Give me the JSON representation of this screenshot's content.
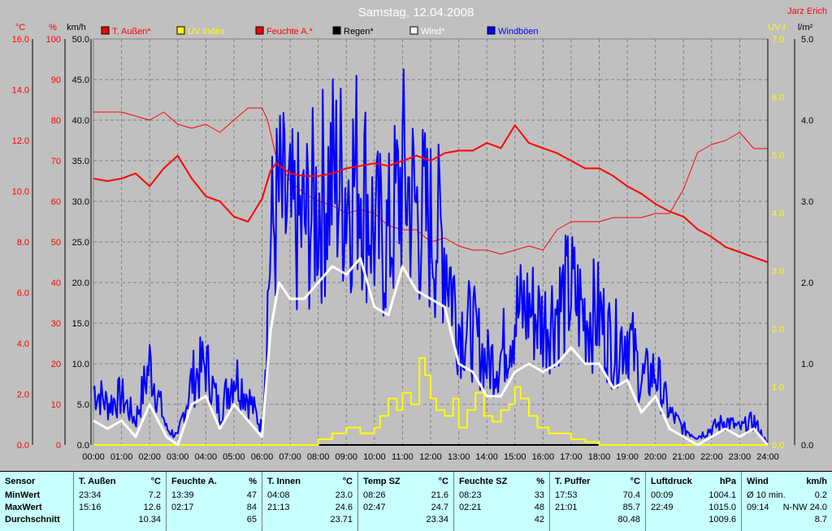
{
  "header": {
    "title": "Samstag, 12.04.2008",
    "author": "Jarz Erich"
  },
  "axes": {
    "temp_unit": "°C",
    "hum_unit": "%",
    "wind_unit": "km/h",
    "uv_unit": "UV-I",
    "rain_unit": "l/m²",
    "temp_ticks": [
      "0.0",
      "2.0",
      "4.0",
      "6.0",
      "8.0",
      "10.0",
      "12.0",
      "14.0",
      "16.0"
    ],
    "hum_ticks": [
      "0",
      "10",
      "20",
      "30",
      "40",
      "50",
      "60",
      "70",
      "80",
      "90",
      "100"
    ],
    "wind_ticks": [
      "0.0",
      "5.0",
      "10.0",
      "15.0",
      "20.0",
      "25.0",
      "30.0",
      "35.0",
      "40.0",
      "45.0",
      "50.0"
    ],
    "uv_ticks": [
      "0.0",
      "1.0",
      "2.0",
      "3.0",
      "4.0",
      "5.0",
      "6.0",
      "7.0"
    ],
    "rain_ticks": [
      "0.0",
      "1.0",
      "2.0",
      "3.0",
      "4.0",
      "5.0"
    ],
    "x_ticks": [
      "00:00",
      "01:00",
      "02:00",
      "03:00",
      "04:00",
      "05:00",
      "06:00",
      "07:00",
      "08:00",
      "09:00",
      "10:00",
      "11:00",
      "12:00",
      "13:00",
      "14:00",
      "15:00",
      "16:00",
      "17:00",
      "18:00",
      "19:00",
      "20:00",
      "21:00",
      "22:00",
      "23:00",
      "24:00"
    ]
  },
  "colors": {
    "temp": "#ff0000",
    "hum": "#ff0000",
    "uv": "#ffff00",
    "rain": "#000000",
    "wind": "#ffffff",
    "gust": "#0000ff",
    "grid": "#808080",
    "axis_text_left": "#ff0000",
    "axis_text_uv": "#ffff00"
  },
  "legend": [
    {
      "name": "T. Außen*",
      "color": "#ff0000"
    },
    {
      "name": "UV Index",
      "color": "#ffff00"
    },
    {
      "name": "Feuchte A.*",
      "color": "#ff0000"
    },
    {
      "name": "Regen*",
      "color": "#000000"
    },
    {
      "name": "Wind*",
      "color": "#ffffff"
    },
    {
      "name": "Windböen",
      "color": "#0000ff"
    }
  ],
  "chart_data": {
    "type": "line",
    "title": "Samstag, 12.04.2008",
    "x_unit": "hour",
    "xlim": [
      0,
      24
    ],
    "series": [
      {
        "name": "T. Außen*",
        "axis": "temp",
        "ylim": [
          0,
          16
        ],
        "width": 2,
        "x": [
          0,
          0.5,
          1,
          1.5,
          2,
          2.5,
          3,
          3.5,
          4,
          4.5,
          5,
          5.5,
          6,
          6.3,
          6.5,
          7,
          7.5,
          8,
          8.5,
          9,
          9.5,
          10,
          10.5,
          11,
          11.5,
          12,
          12.5,
          13,
          13.5,
          14,
          14.5,
          15,
          15.5,
          16,
          16.5,
          17,
          17.5,
          18,
          18.5,
          19,
          19.5,
          20,
          20.5,
          21,
          21.5,
          22,
          22.5,
          23,
          23.5,
          24
        ],
        "y": [
          10.5,
          10.4,
          10.5,
          10.7,
          10.2,
          10.9,
          11.4,
          10.5,
          9.8,
          9.6,
          9.0,
          8.8,
          9.7,
          10.8,
          11.1,
          10.7,
          10.6,
          10.6,
          10.7,
          10.9,
          11.0,
          11.1,
          11.0,
          11.2,
          11.4,
          11.2,
          11.5,
          11.6,
          11.6,
          11.9,
          11.7,
          12.6,
          11.9,
          11.7,
          11.5,
          11.2,
          10.9,
          10.9,
          10.6,
          10.2,
          9.9,
          9.5,
          9.2,
          9.0,
          8.5,
          8.2,
          7.8,
          7.6,
          7.4,
          7.2
        ]
      },
      {
        "name": "Feuchte A.*",
        "axis": "hum",
        "ylim": [
          0,
          100
        ],
        "width": 1,
        "x": [
          0,
          1,
          1.5,
          2,
          2.5,
          3,
          3.5,
          4,
          4.5,
          5,
          5.5,
          6,
          6.2,
          6.5,
          7,
          7.5,
          8,
          8.5,
          9,
          9.5,
          10,
          10.5,
          11,
          11.5,
          12,
          12.5,
          13,
          13.5,
          14,
          14.5,
          15,
          15.5,
          16,
          16.5,
          17,
          17.5,
          18,
          18.5,
          19,
          19.5,
          20,
          20.5,
          21,
          21.5,
          22,
          22.5,
          23,
          23.5,
          24
        ],
        "y": [
          82,
          82,
          81,
          80,
          82,
          79,
          78,
          79,
          77,
          80,
          83,
          83,
          80,
          71,
          65,
          62,
          60,
          59,
          57,
          58,
          57,
          54,
          53,
          53,
          50,
          51,
          49,
          48,
          48,
          47,
          48,
          49,
          48,
          53,
          55,
          55,
          55,
          56,
          56,
          56,
          57,
          57,
          63,
          72,
          74,
          75,
          77,
          73,
          73
        ]
      },
      {
        "name": "UV Index",
        "axis": "uv",
        "ylim": [
          0,
          7
        ],
        "width": 2,
        "step": true,
        "x": [
          0,
          7.9,
          8,
          8.5,
          9,
          9.5,
          10,
          10.2,
          10.5,
          10.8,
          11,
          11.3,
          11.6,
          11.8,
          12,
          12.2,
          12.5,
          12.8,
          13,
          13.3,
          13.6,
          13.9,
          14.2,
          14.5,
          14.8,
          15,
          15.2,
          15.5,
          15.8,
          16.2,
          16.5,
          17,
          17.5,
          18,
          24
        ],
        "y": [
          0,
          0,
          0.1,
          0.2,
          0.3,
          0.2,
          0.3,
          0.5,
          0.8,
          0.6,
          0.9,
          0.7,
          1.5,
          1.2,
          0.8,
          0.6,
          0.5,
          0.8,
          0.3,
          0.6,
          0.9,
          0.5,
          0.4,
          0.6,
          0.7,
          1.0,
          0.8,
          0.5,
          0.3,
          0.2,
          0.2,
          0.1,
          0.05,
          0,
          0
        ]
      },
      {
        "name": "Regen*",
        "axis": "rain",
        "ylim": [
          0,
          5
        ],
        "width": 2,
        "x": [
          0,
          24
        ],
        "y": [
          0,
          0
        ]
      },
      {
        "name": "Wind*",
        "axis": "wind",
        "ylim": [
          0,
          50
        ],
        "width": 3,
        "x": [
          0,
          0.5,
          1,
          1.5,
          2,
          2.3,
          2.6,
          3,
          3.5,
          4,
          4.5,
          5,
          5.5,
          6,
          6.3,
          6.6,
          7,
          7.5,
          8,
          8.5,
          9,
          9.5,
          10,
          10.5,
          11,
          11.5,
          12,
          12.5,
          13,
          13.5,
          14,
          14.5,
          15,
          15.5,
          16,
          16.5,
          17,
          17.5,
          18,
          18.5,
          19,
          19.5,
          20,
          20.5,
          21,
          21.5,
          22,
          22.5,
          23,
          23.5,
          24
        ],
        "y": [
          3,
          2,
          3,
          1,
          5,
          3,
          1,
          0,
          5,
          6,
          2,
          5,
          3,
          1,
          14,
          20,
          18,
          18,
          20,
          22,
          21,
          23,
          17,
          16,
          22,
          19,
          18,
          17,
          10,
          9,
          6,
          6,
          9,
          10,
          9,
          10,
          12,
          10,
          10,
          7,
          8,
          4,
          6,
          2,
          1,
          0,
          1,
          2,
          1,
          2,
          0
        ]
      },
      {
        "name": "Windböen",
        "axis": "wind",
        "ylim": [
          0,
          50
        ],
        "width": 2,
        "noisy": true,
        "x": [
          0,
          0.5,
          1,
          1.5,
          2,
          2.3,
          2.6,
          3,
          3.5,
          4,
          4.5,
          5,
          5.5,
          6,
          6.3,
          6.6,
          7,
          7.5,
          8,
          8.5,
          9,
          9.5,
          10,
          10.5,
          11,
          11.5,
          12,
          12.5,
          13,
          13.5,
          14,
          14.5,
          15,
          15.5,
          16,
          16.5,
          17,
          17.5,
          18,
          18.5,
          19,
          19.5,
          20,
          20.5,
          21,
          21.5,
          22,
          22.5,
          23,
          23.5,
          24
        ],
        "y": [
          7,
          5,
          6,
          3,
          10,
          6,
          2,
          1,
          8,
          10,
          4,
          9,
          6,
          2,
          25,
          30,
          27,
          27,
          30,
          33,
          32,
          34,
          26,
          25,
          33,
          29,
          27,
          25,
          15,
          14,
          10,
          11,
          16,
          17,
          15,
          17,
          19,
          16,
          16,
          12,
          14,
          8,
          9,
          4,
          2,
          1,
          2,
          3,
          2,
          3,
          0
        ]
      }
    ]
  },
  "table": {
    "row_labels": {
      "title": "Sensor",
      "min": "MinWert",
      "max": "MaxWert",
      "avg": "Durchschnitt"
    },
    "columns": [
      {
        "name": "T. Außen",
        "unit": "°C",
        "min_time": "23:34",
        "min": "7.2",
        "max_time": "15:16",
        "max": "12.6",
        "avg": "10.34"
      },
      {
        "name": "Feuchte A.",
        "unit": "%",
        "min_time": "13:39",
        "min": "47",
        "max_time": "02:17",
        "max": "84",
        "avg": "65"
      },
      {
        "name": "T. Innen",
        "unit": "°C",
        "min_time": "04:08",
        "min": "23.0",
        "max_time": "21:13",
        "max": "24.6",
        "avg": "23.71"
      },
      {
        "name": "Temp SZ",
        "unit": "°C",
        "min_time": "08:26",
        "min": "21.6",
        "max_time": "02:47",
        "max": "24.7",
        "avg": "23.34"
      },
      {
        "name": "Feuchte SZ",
        "unit": "%",
        "min_time": "08:23",
        "min": "33",
        "max_time": "02:21",
        "max": "48",
        "avg": "42"
      },
      {
        "name": "T. Puffer",
        "unit": "°C",
        "min_time": "17:53",
        "min": "70.4",
        "max_time": "21:01",
        "max": "85.7",
        "avg": "80.48"
      },
      {
        "name": "Luftdruck",
        "unit": "hPa",
        "min_time": "00:09",
        "min": "1004.1",
        "max_time": "22:49",
        "max": "1015.0",
        "avg": "1009.6"
      },
      {
        "name": "Wind",
        "unit": "km/h",
        "min_time": "Ø 10 min.",
        "min": "0.2",
        "max_time": "09:14",
        "max": "N-NW 24.0",
        "avg": "8.7"
      }
    ]
  }
}
